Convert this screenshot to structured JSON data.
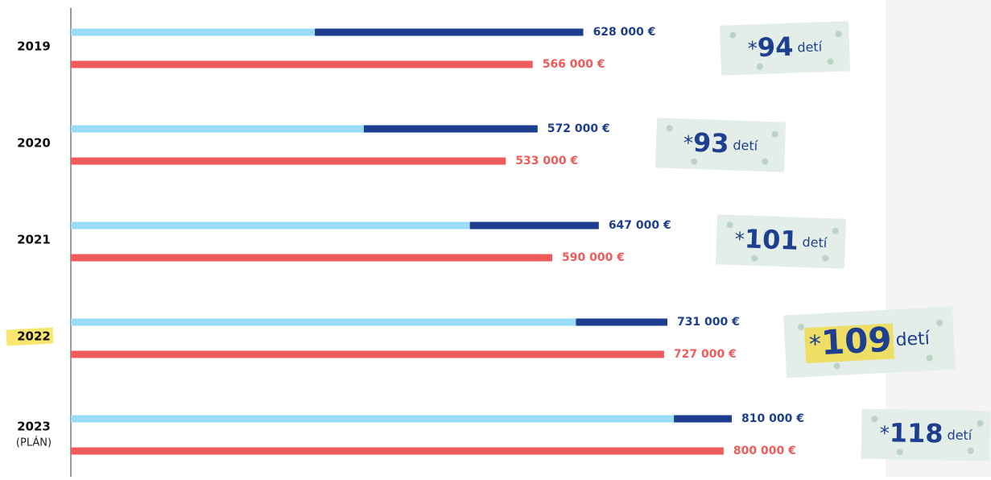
{
  "chart_data": {
    "type": "hbar",
    "categories": [
      "2019",
      "2020",
      "2021",
      "2022",
      "2023"
    ],
    "category_notes": [
      null,
      null,
      null,
      null,
      "(PLÁN)"
    ],
    "highlight": "2022",
    "xlim": [
      0,
      1100000
    ],
    "series": [
      {
        "color": "#1e3f8f",
        "values": [
          628000,
          572000,
          647000,
          731000,
          810000
        ],
        "value_labels": [
          "628 000 €",
          "572 000 €",
          "647 000 €",
          "731 000 €",
          "810 000 €"
        ]
      },
      {
        "color": "#9adcf5",
        "values": [
          299000,
          359000,
          489000,
          619000,
          739000
        ],
        "overlay_on": 0
      },
      {
        "color": "#ef5b5b",
        "values": [
          566000,
          533000,
          590000,
          727000,
          800000
        ],
        "value_labels": [
          "566 000 €",
          "533 000 €",
          "590 000 €",
          "727 000 €",
          "800 000  €"
        ]
      }
    ],
    "children_prefix": "*",
    "children_unit": "detí",
    "children": [
      94,
      93,
      101,
      109,
      118
    ]
  }
}
